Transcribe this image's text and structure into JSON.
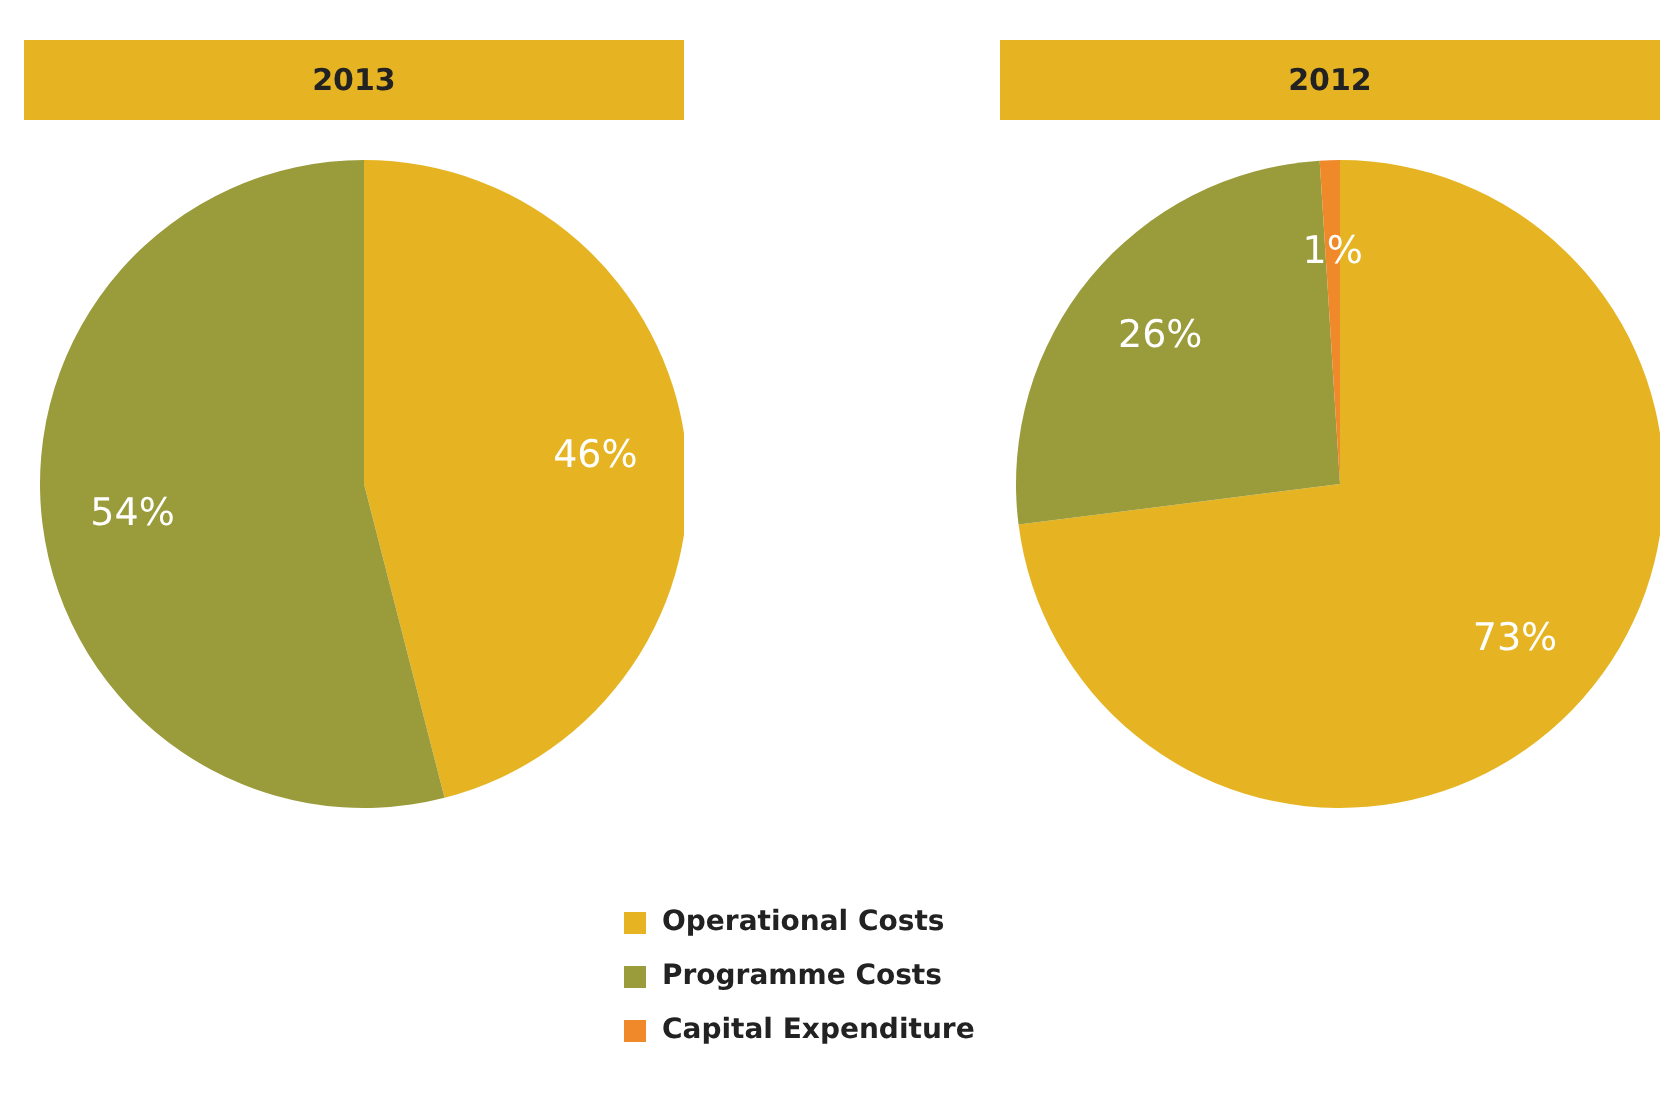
{
  "chart_data": [
    {
      "type": "pie",
      "title": "2013",
      "categories": [
        null,
        null
      ],
      "values": [
        46,
        54
      ],
      "colors": [
        "#e6b422",
        "#9a9b3a"
      ],
      "value_labels": [
        "46%",
        "54%"
      ],
      "legend": false
    },
    {
      "type": "pie",
      "title": "2012",
      "categories": [
        "Operational Costs",
        "Programme Costs",
        "Capital Expenditure"
      ],
      "values": [
        73,
        26,
        1
      ],
      "colors": [
        "#e6b422",
        "#9a9b3a",
        "#f0892a"
      ],
      "value_labels": [
        "73%",
        "26%",
        "1%"
      ],
      "legend": "bottom"
    }
  ]
}
